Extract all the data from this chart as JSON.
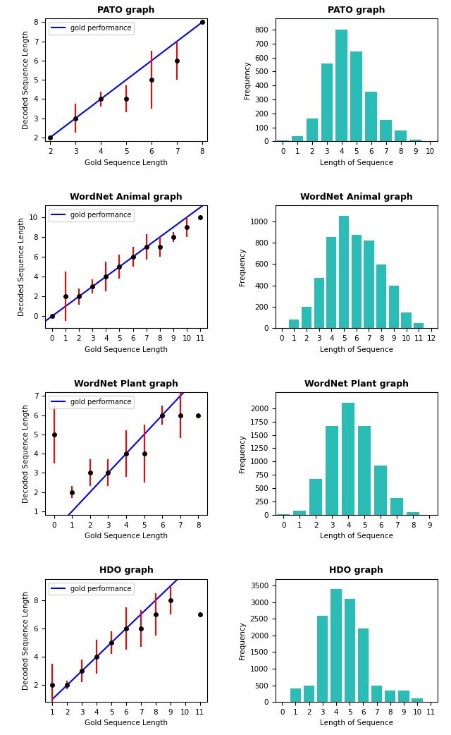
{
  "plots": [
    {
      "title": "PATO graph",
      "scatter_x": [
        2,
        3,
        4,
        5,
        6,
        7,
        8
      ],
      "scatter_y": [
        2,
        3,
        4,
        4,
        5,
        6,
        8
      ],
      "scatter_yerr_low": [
        0,
        0.75,
        0.4,
        0.7,
        1.5,
        1.0,
        0
      ],
      "scatter_yerr_high": [
        0,
        0.75,
        0.4,
        0.7,
        1.5,
        1.0,
        0
      ],
      "line_x": [
        2,
        8
      ],
      "line_y": [
        2,
        8
      ],
      "xlim": [
        1.8,
        8.2
      ],
      "ylim": [
        1.8,
        8.2
      ],
      "xticks": [
        2,
        3,
        4,
        5,
        6,
        7,
        8
      ],
      "yticks": [
        2,
        3,
        4,
        5,
        6,
        7,
        8
      ],
      "xlabel": "Gold Sequence Length",
      "ylabel": "Decoded Sequence Length"
    },
    {
      "title": "WordNet Animal graph",
      "scatter_x": [
        0,
        1,
        2,
        3,
        4,
        5,
        6,
        7,
        8,
        9,
        10,
        11
      ],
      "scatter_y": [
        0,
        2,
        2,
        3,
        4,
        5,
        6,
        7,
        7,
        8,
        9,
        10
      ],
      "scatter_yerr_low": [
        0,
        2.5,
        0.8,
        0.7,
        1.5,
        1.2,
        1.0,
        1.3,
        1.0,
        0.5,
        1.0,
        0
      ],
      "scatter_yerr_high": [
        0,
        2.5,
        0.8,
        0.7,
        1.5,
        1.2,
        1.0,
        1.3,
        1.0,
        0.5,
        1.0,
        0
      ],
      "line_x": [
        -0.5,
        11.5
      ],
      "line_y": [
        -0.5,
        11.5
      ],
      "xlim": [
        -0.5,
        11.5
      ],
      "ylim": [
        -1.2,
        11.2
      ],
      "xticks": [
        0,
        1,
        2,
        3,
        4,
        5,
        6,
        7,
        8,
        9,
        10,
        11
      ],
      "yticks": [
        0,
        2,
        4,
        6,
        8,
        10
      ],
      "xlabel": "Gold Sequence Length",
      "ylabel": "Decoded Sequence Length"
    },
    {
      "title": "WordNet Plant graph",
      "scatter_x": [
        0,
        1,
        2,
        3,
        4,
        5,
        6,
        7,
        8
      ],
      "scatter_y": [
        5,
        2,
        3,
        3,
        4,
        4,
        6,
        6,
        6
      ],
      "scatter_yerr_low": [
        1.5,
        0.3,
        0.7,
        0.7,
        1.2,
        1.5,
        0.5,
        1.2,
        0
      ],
      "scatter_yerr_high": [
        1.5,
        0.3,
        0.7,
        0.7,
        1.2,
        1.5,
        0.5,
        1.2,
        0
      ],
      "line_x": [
        -0.5,
        8.2
      ],
      "line_y": [
        -0.5,
        8.2
      ],
      "xlim": [
        -0.5,
        8.5
      ],
      "ylim": [
        0.8,
        7.2
      ],
      "xticks": [
        0,
        1,
        2,
        3,
        4,
        5,
        6,
        7,
        8
      ],
      "yticks": [
        1,
        2,
        3,
        4,
        5,
        6,
        7
      ],
      "xlabel": "Gold Sequence Length",
      "ylabel": "Decoded Sequence Length"
    },
    {
      "title": "HDO graph",
      "scatter_x": [
        1,
        2,
        3,
        4,
        5,
        6,
        7,
        8,
        9,
        11
      ],
      "scatter_y": [
        2,
        2,
        3,
        4,
        5,
        6,
        6,
        7,
        8,
        7
      ],
      "scatter_yerr_low": [
        1.5,
        0.3,
        0.8,
        1.2,
        0.8,
        1.5,
        1.3,
        1.5,
        1.0,
        0
      ],
      "scatter_yerr_high": [
        1.5,
        0.3,
        0.8,
        1.2,
        0.8,
        1.5,
        1.3,
        1.5,
        1.0,
        0
      ],
      "line_x": [
        1,
        11
      ],
      "line_y": [
        1,
        11
      ],
      "xlim": [
        0.5,
        11.5
      ],
      "ylim": [
        0.8,
        9.5
      ],
      "xticks": [
        1,
        2,
        3,
        4,
        5,
        6,
        7,
        8,
        9,
        10,
        11
      ],
      "yticks": [
        2,
        4,
        6,
        8
      ],
      "xlabel": "Gold Sequence Length",
      "ylabel": "Decoded Sequence Length"
    }
  ],
  "hists": [
    {
      "title": "PATO graph",
      "bar_x": [
        0,
        1,
        2,
        3,
        4,
        5,
        6,
        7,
        8,
        9,
        10
      ],
      "bar_heights": [
        5,
        35,
        165,
        555,
        800,
        645,
        355,
        155,
        78,
        10,
        0
      ],
      "xlim": [
        -0.5,
        10.5
      ],
      "ylim": [
        0,
        880
      ],
      "xticks": [
        0,
        1,
        2,
        3,
        4,
        5,
        6,
        7,
        8,
        9,
        10
      ],
      "yticks": [
        0,
        100,
        200,
        300,
        400,
        500,
        600,
        700,
        800
      ],
      "xlabel": "Length of Sequence",
      "ylabel": "Frequency"
    },
    {
      "title": "WordNet Animal graph",
      "bar_x": [
        0,
        1,
        2,
        3,
        4,
        5,
        6,
        7,
        8,
        9,
        10,
        11,
        12
      ],
      "bar_heights": [
        5,
        80,
        200,
        470,
        850,
        1050,
        870,
        820,
        595,
        400,
        150,
        50,
        5
      ],
      "xlim": [
        -0.5,
        12.5
      ],
      "ylim": [
        0,
        1150
      ],
      "xticks": [
        0,
        1,
        2,
        3,
        4,
        5,
        6,
        7,
        8,
        9,
        10,
        11,
        12
      ],
      "yticks": [
        0,
        200,
        400,
        600,
        800,
        1000
      ],
      "xlabel": "Length of Sequence",
      "ylabel": "Frequency"
    },
    {
      "title": "WordNet Plant graph",
      "bar_x": [
        0,
        1,
        2,
        3,
        4,
        5,
        6,
        7,
        8,
        9
      ],
      "bar_heights": [
        20,
        80,
        680,
        1660,
        2100,
        1660,
        920,
        320,
        60,
        5
      ],
      "xlim": [
        -0.5,
        9.5
      ],
      "ylim": [
        0,
        2300
      ],
      "xticks": [
        0,
        1,
        2,
        3,
        4,
        5,
        6,
        7,
        8,
        9
      ],
      "yticks": [
        0,
        250,
        500,
        750,
        1000,
        1250,
        1500,
        1750,
        2000
      ],
      "xlabel": "Length of Sequence",
      "ylabel": "Frequency"
    },
    {
      "title": "HDO graph",
      "bar_x": [
        0,
        1,
        2,
        3,
        4,
        5,
        6,
        7,
        8,
        9,
        10,
        11
      ],
      "bar_heights": [
        0,
        400,
        500,
        2600,
        3400,
        3100,
        2200,
        500,
        350,
        350,
        100,
        5
      ],
      "xlim": [
        -0.5,
        11.5
      ],
      "ylim": [
        0,
        3700
      ],
      "xticks": [
        0,
        1,
        2,
        3,
        4,
        5,
        6,
        7,
        8,
        9,
        10,
        11
      ],
      "yticks": [
        0,
        500,
        1000,
        1500,
        2000,
        2500,
        3000,
        3500
      ],
      "xlabel": "Length of Sequence",
      "ylabel": "Frequency"
    }
  ],
  "bar_color": "#2abdb5",
  "line_color": "blue",
  "scatter_color": "black",
  "errorbar_color": "red"
}
